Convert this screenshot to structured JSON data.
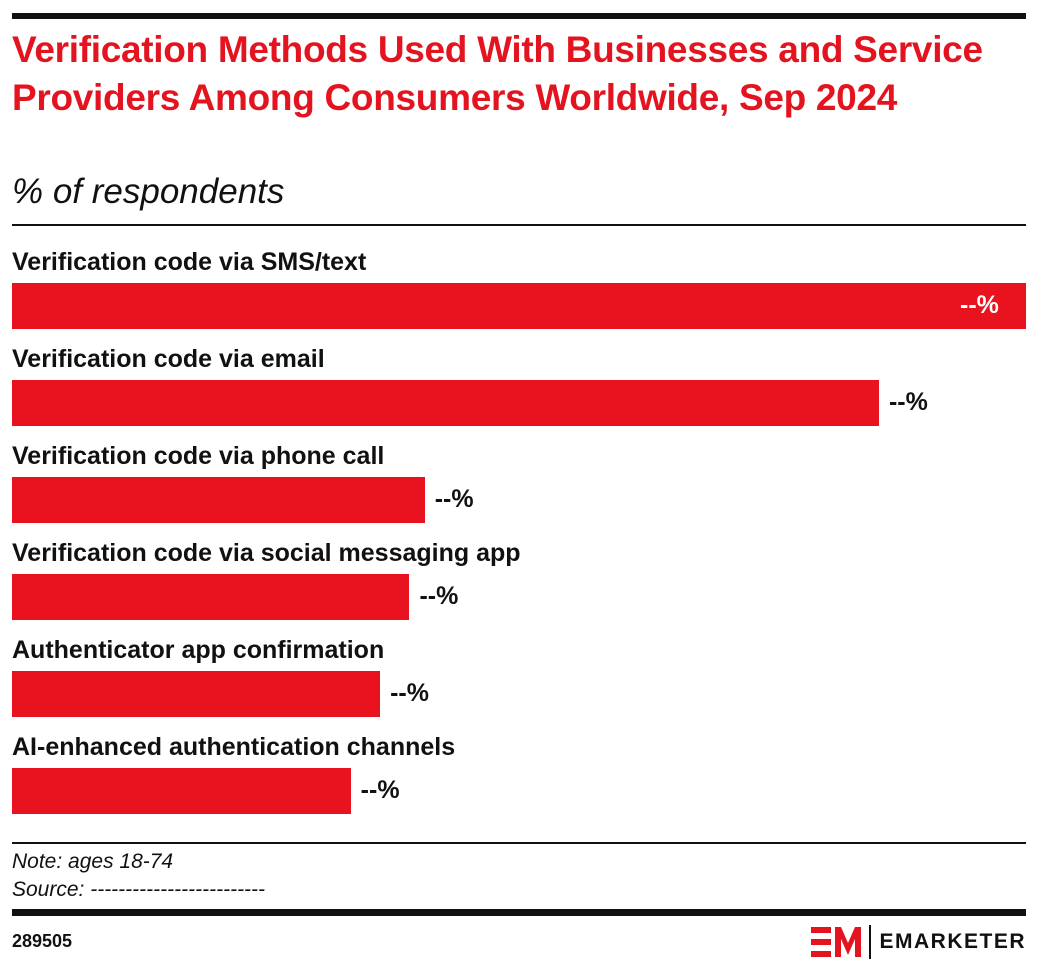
{
  "header": {
    "title": "Verification Methods Used With Businesses and Service Providers Among Consumers Worldwide, Sep 2024",
    "subtitle": "% of respondents"
  },
  "chart_data": {
    "type": "bar",
    "orientation": "horizontal",
    "title": "Verification Methods Used With Businesses and Service Providers Among Consumers Worldwide, Sep 2024",
    "subtitle": "% of respondents",
    "categories": [
      "Verification code via SMS/text",
      "Verification code via email",
      "Verification code via phone call",
      "Verification code via social messaging app",
      "Authenticator app confirmation",
      "AI-enhanced authentication channels"
    ],
    "values_relative_to_max": [
      100,
      85.5,
      40.7,
      39.2,
      36.3,
      33.4
    ],
    "value_labels": [
      "--%",
      "--%",
      "--%",
      "--%",
      "--%",
      "--%"
    ],
    "bar_color": "#e8131f",
    "grid": false
  },
  "footer": {
    "note": "Note: ages 18-74",
    "source": "Source: -------------------------",
    "chart_id": "289505",
    "brand": "EMARKETER"
  }
}
